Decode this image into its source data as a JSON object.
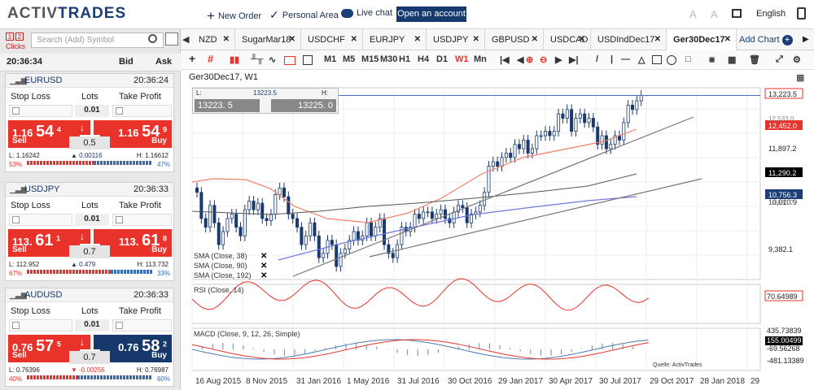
{
  "brand": {
    "logo_main": "ACTIV",
    "logo_accent": "TRADES"
  },
  "topbar": {
    "new_order": "New Order",
    "personal_area": "Personal Area",
    "live_chat": "Live chat",
    "open_account": "Open an account",
    "language": "English"
  },
  "left": {
    "clicks_label": "Clicks",
    "clicks_1": "1",
    "clicks_2": "2",
    "search_placeholder": "Search (Add) Symbol",
    "clock": "20:36:34",
    "bid": "Bid",
    "ask": "Ask"
  },
  "cards": [
    {
      "symbol": "EURUSD",
      "time": "20:36:24",
      "stop_loss": "Stop Loss",
      "lots": "Lots",
      "take_profit": "Take Profit",
      "lots_value": "0.01",
      "sell_pre": "1.16",
      "sell_big": "54",
      "sell_sup": "4",
      "buy_pre": "1.16",
      "buy_big": "54",
      "buy_sup": "9",
      "sell": "Sell",
      "buy": "Buy",
      "qty": "0.5",
      "low": "L: 1.16242",
      "change": "0.00116",
      "high": "H: 1.16612",
      "pct_left": "53%",
      "pct_right": "47%",
      "change_dir": "up"
    },
    {
      "symbol": "USDJPY",
      "time": "20:36:33",
      "stop_loss": "Stop Loss",
      "lots": "Lots",
      "take_profit": "Take Profit",
      "lots_value": "0.01",
      "sell_pre": "113.",
      "sell_big": "61",
      "sell_sup": "1",
      "buy_pre": "113.",
      "buy_big": "61",
      "buy_sup": "8",
      "sell": "Sell",
      "buy": "Buy",
      "qty": "0.7",
      "low": "L: 112.952",
      "change": "0.479",
      "high": "H: 113.732",
      "pct_left": "67%",
      "pct_right": "33%",
      "change_dir": "up"
    },
    {
      "symbol": "AUDUSD",
      "time": "20:36:33",
      "stop_loss": "Stop Loss",
      "lots": "Lots",
      "take_profit": "Take Profit",
      "lots_value": "0.01",
      "sell_pre": "0.76",
      "sell_big": "57",
      "sell_sup": "5",
      "buy_pre": "0.76",
      "buy_big": "58",
      "buy_sup": "2",
      "sell": "Sell",
      "buy": "Buy",
      "qty": "0.7",
      "low": "L: 0.76396",
      "change": "-0.00256",
      "high": "H: 0.76987",
      "pct_left": "40%",
      "pct_right": "60%",
      "change_dir": "down"
    }
  ],
  "tabs": [
    "NZD",
    "SugarMar18",
    "USDCHF",
    "EURJPY",
    "USDJPY",
    "GBPUSD",
    "USDCAD",
    "USDIndDec17",
    "Ger30Dec17"
  ],
  "add_chart": "Add Chart",
  "toolbar": {
    "periods": [
      "M1",
      "M5",
      "M15",
      "M30",
      "H1",
      "H4",
      "D1",
      "W1",
      "Mn"
    ],
    "active_period": "W1"
  },
  "chart": {
    "title": "Ger30Dec17, W1",
    "order_box": {
      "label": "L:",
      "price": "13223.5",
      "h_label": "H:",
      "sell_value": "13223. 5",
      "buy_value": "13225. 0"
    },
    "price_labels": [
      "13,223.5",
      "12,452.0",
      "11,897.2",
      "11,290.2",
      "10,756.3",
      "10,010.9",
      "9,382.1"
    ],
    "partial_labels": [
      "12,533.0",
      "10,633.7"
    ],
    "indicators": [
      "SMA (Close, 38)",
      "SMA (Close, 90)",
      "SMA (Close, 192)"
    ],
    "rsi_label": "RSI (Close, 14)",
    "rsi_value": "70.64989",
    "macd_label": "MACD (Close, 9, 12, 26, Simple)",
    "macd_values": [
      "435.73839",
      "155.00499",
      "-69.56268",
      "-481.13389"
    ],
    "source": "Quelle: ActivTrades",
    "x_labels": [
      "16 Aug 2015",
      "8 Nov 2015",
      "31 Jan 2016",
      "1 May 2016",
      "31 Jul 2016",
      "30 Oct 2016",
      "29 Jan 2017",
      "30 Apr 2017",
      "30 Jul 2017",
      "29 Oct 2017",
      "28 Jan 2018",
      "29"
    ]
  },
  "colors": {
    "red": "#e8322a",
    "blue": "#16386a",
    "candle": "#1a3a6e"
  }
}
